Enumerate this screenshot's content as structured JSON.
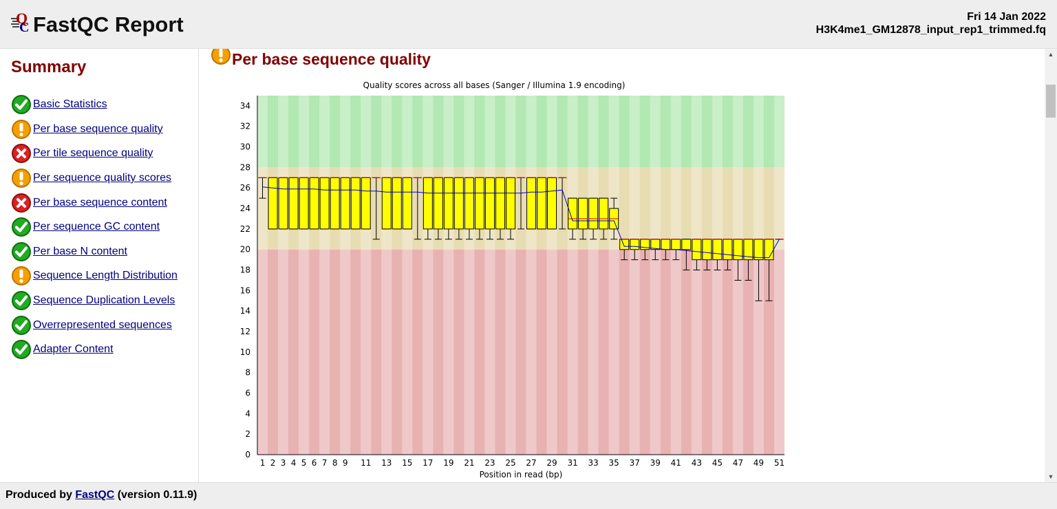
{
  "header": {
    "title": "FastQC Report",
    "date": "Fri 14 Jan 2022",
    "filename": "H3K4me1_GM12878_input_rep1_trimmed.fq"
  },
  "sidebar": {
    "title": "Summary",
    "items": [
      {
        "label": "Basic Statistics",
        "status": "pass"
      },
      {
        "label": "Per base sequence quality",
        "status": "warn"
      },
      {
        "label": "Per tile sequence quality",
        "status": "fail"
      },
      {
        "label": "Per sequence quality scores",
        "status": "warn"
      },
      {
        "label": "Per base sequence content",
        "status": "fail"
      },
      {
        "label": "Per sequence GC content",
        "status": "pass"
      },
      {
        "label": "Per base N content",
        "status": "pass"
      },
      {
        "label": "Sequence Length Distribution",
        "status": "warn"
      },
      {
        "label": "Sequence Duplication Levels",
        "status": "pass"
      },
      {
        "label": "Overrepresented sequences",
        "status": "pass"
      },
      {
        "label": "Adapter Content",
        "status": "pass"
      }
    ]
  },
  "main": {
    "section_title": "Per base sequence quality",
    "section_status": "warn"
  },
  "footer": {
    "prefix": "Produced by ",
    "link": "FastQC",
    "suffix": " (version 0.11.9)"
  },
  "colors": {
    "pass": "#22aa22",
    "warn": "#f5a000",
    "fail": "#dd2222",
    "heading": "#800000",
    "link": "#000080",
    "zone_good": "#b2e8b2",
    "zone_ok": "#e8dcb2",
    "zone_bad": "#e8b2b2",
    "box_fill": "#ffff00",
    "median": "#cc0000",
    "mean": "#0000cc"
  },
  "chart_data": {
    "type": "box",
    "title": "Quality scores across all bases (Sanger / Illumina 1.9 encoding)",
    "xlabel": "Position in read (bp)",
    "ylabel": "",
    "ylim": [
      0,
      35
    ],
    "yticks": [
      0,
      2,
      4,
      6,
      8,
      10,
      12,
      14,
      16,
      18,
      20,
      22,
      24,
      26,
      28,
      30,
      32,
      34
    ],
    "xtick_labels": [
      "1",
      "2",
      "3",
      "4",
      "5",
      "6",
      "7",
      "8",
      "9",
      "11",
      "13",
      "15",
      "17",
      "19",
      "21",
      "23",
      "25",
      "27",
      "29",
      "31",
      "33",
      "35",
      "37",
      "39",
      "41",
      "43",
      "45",
      "47",
      "49",
      "51"
    ],
    "zones": [
      {
        "from": 28,
        "to": 35,
        "name": "good"
      },
      {
        "from": 20,
        "to": 28,
        "name": "ok"
      },
      {
        "from": 0,
        "to": 20,
        "name": "bad"
      }
    ],
    "positions": [
      1,
      2,
      3,
      4,
      5,
      6,
      7,
      8,
      9,
      10,
      11,
      12,
      13,
      14,
      15,
      16,
      17,
      18,
      19,
      20,
      21,
      22,
      23,
      24,
      25,
      26,
      27,
      28,
      29,
      30,
      31,
      32,
      33,
      34,
      35,
      36,
      37,
      38,
      39,
      40,
      41,
      42,
      43,
      44,
      45,
      46,
      47,
      48,
      49,
      50,
      51
    ],
    "q1": [
      27,
      22,
      22,
      22,
      22,
      22,
      22,
      22,
      22,
      22,
      22,
      27,
      22,
      22,
      22,
      27,
      22,
      22,
      22,
      22,
      22,
      22,
      22,
      22,
      22,
      27,
      22,
      22,
      22,
      27,
      22,
      22,
      22,
      22,
      22,
      20,
      20,
      20,
      20,
      20,
      20,
      20,
      19,
      19,
      19,
      19,
      19,
      19,
      19,
      19,
      21
    ],
    "q3": [
      27,
      27,
      27,
      27,
      27,
      27,
      27,
      27,
      27,
      27,
      27,
      27,
      27,
      27,
      27,
      27,
      27,
      27,
      27,
      27,
      27,
      27,
      27,
      27,
      27,
      27,
      27,
      27,
      27,
      27,
      25,
      25,
      25,
      25,
      24,
      21,
      21,
      21,
      21,
      21,
      21,
      21,
      21,
      21,
      21,
      21,
      21,
      21,
      21,
      21,
      21
    ],
    "median": [
      27,
      27,
      27,
      27,
      27,
      27,
      27,
      27,
      27,
      27,
      27,
      27,
      27,
      27,
      27,
      27,
      27,
      27,
      27,
      27,
      27,
      27,
      27,
      27,
      27,
      27,
      27,
      27,
      27,
      27,
      23,
      23,
      23,
      23,
      23,
      21,
      21,
      21,
      21,
      21,
      21,
      20,
      21,
      21,
      21,
      21,
      21,
      21,
      21,
      21,
      21
    ],
    "low": [
      25,
      22,
      22,
      22,
      22,
      22,
      22,
      22,
      22,
      22,
      22,
      21,
      22,
      22,
      22,
      21,
      21,
      21,
      21,
      21,
      21,
      21,
      21,
      21,
      21,
      22,
      22,
      22,
      22,
      22,
      21,
      21,
      21,
      21,
      21,
      19,
      19,
      19,
      19,
      19,
      19,
      18,
      18,
      18,
      18,
      18,
      17,
      17,
      15,
      15,
      21
    ],
    "high": [
      27,
      27,
      27,
      27,
      27,
      27,
      27,
      27,
      27,
      27,
      27,
      27,
      27,
      27,
      27,
      27,
      27,
      27,
      27,
      27,
      27,
      27,
      27,
      27,
      27,
      27,
      27,
      27,
      27,
      27,
      25,
      25,
      25,
      25,
      25,
      21,
      21,
      21,
      21,
      21,
      21,
      21,
      21,
      21,
      21,
      21,
      21,
      21,
      21,
      21,
      21
    ],
    "mean": [
      26.1,
      26.0,
      25.9,
      25.9,
      25.9,
      25.9,
      25.8,
      25.8,
      25.8,
      25.8,
      25.7,
      25.7,
      25.6,
      25.6,
      25.6,
      25.6,
      25.5,
      25.5,
      25.5,
      25.5,
      25.5,
      25.5,
      25.5,
      25.5,
      25.5,
      25.5,
      25.6,
      25.6,
      25.7,
      25.8,
      22.8,
      22.8,
      22.8,
      22.8,
      22.8,
      20.3,
      20.3,
      20.2,
      20.1,
      20.0,
      20.0,
      19.9,
      19.8,
      19.7,
      19.6,
      19.5,
      19.4,
      19.3,
      19.2,
      19.2,
      21.0
    ]
  }
}
